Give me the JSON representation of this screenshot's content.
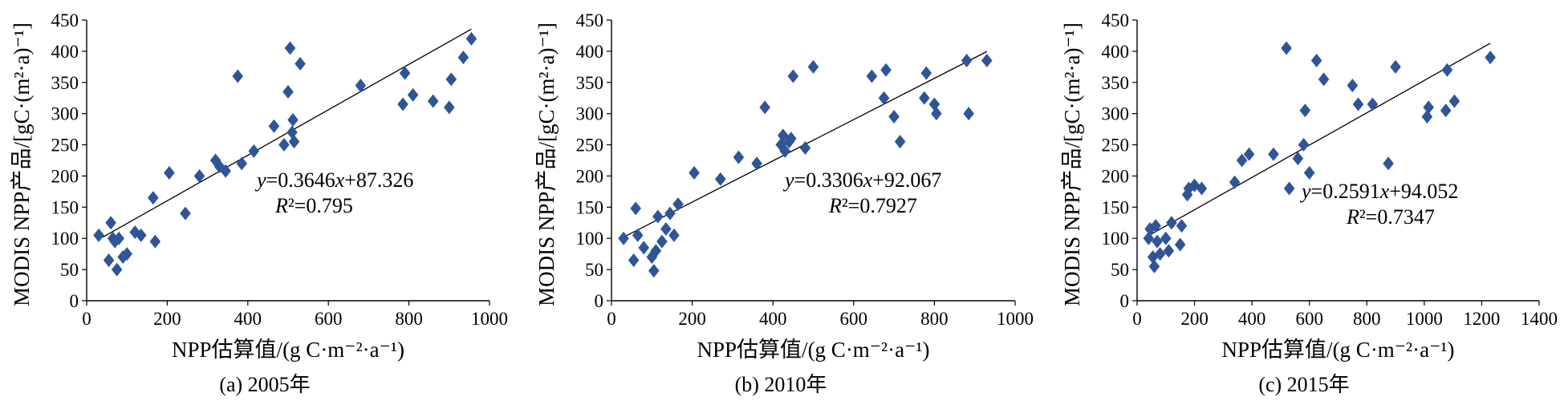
{
  "chart_data": [
    {
      "type": "scatter",
      "panel_label": "(a) 2005年",
      "xlabel": "NPP估算值/(g C·m⁻²·a⁻¹)",
      "ylabel": "MODIS NPP产品/[gC·(m²·a)⁻¹]",
      "xlim": [
        0,
        1000
      ],
      "ylim": [
        0,
        450
      ],
      "xticks": [
        0,
        200,
        400,
        600,
        800,
        1000
      ],
      "yticks": [
        0,
        50,
        100,
        150,
        200,
        250,
        300,
        350,
        400,
        450
      ],
      "marker": "diamond",
      "marker_color": "#2f5597",
      "grid": false,
      "trendline": {
        "slope": 0.3646,
        "intercept": 87.326,
        "x_range": [
          40,
          955
        ]
      },
      "equation_text": "y=0.3646x+87.326",
      "r2_text": "R²=0.795",
      "points": [
        [
          30,
          105
        ],
        [
          55,
          65
        ],
        [
          60,
          125
        ],
        [
          65,
          100
        ],
        [
          70,
          95
        ],
        [
          75,
          50
        ],
        [
          80,
          100
        ],
        [
          90,
          70
        ],
        [
          100,
          75
        ],
        [
          120,
          110
        ],
        [
          135,
          105
        ],
        [
          165,
          165
        ],
        [
          170,
          95
        ],
        [
          205,
          205
        ],
        [
          245,
          140
        ],
        [
          280,
          200
        ],
        [
          320,
          225
        ],
        [
          330,
          215
        ],
        [
          345,
          208
        ],
        [
          375,
          360
        ],
        [
          385,
          220
        ],
        [
          415,
          240
        ],
        [
          465,
          280
        ],
        [
          490,
          250
        ],
        [
          500,
          335
        ],
        [
          505,
          405
        ],
        [
          510,
          270
        ],
        [
          512,
          290
        ],
        [
          515,
          255
        ],
        [
          530,
          380
        ],
        [
          680,
          345
        ],
        [
          785,
          315
        ],
        [
          790,
          365
        ],
        [
          810,
          330
        ],
        [
          860,
          320
        ],
        [
          900,
          310
        ],
        [
          905,
          355
        ],
        [
          935,
          390
        ],
        [
          955,
          420
        ]
      ]
    },
    {
      "type": "scatter",
      "panel_label": "(b) 2010年",
      "xlabel": "NPP估算值/(g C·m⁻²·a⁻¹)",
      "ylabel": "MODIS NPP产品/[gC·(m²·a)⁻¹]",
      "xlim": [
        0,
        1000
      ],
      "ylim": [
        0,
        450
      ],
      "xticks": [
        0,
        200,
        400,
        600,
        800,
        1000
      ],
      "yticks": [
        0,
        50,
        100,
        150,
        200,
        250,
        300,
        350,
        400,
        450
      ],
      "marker": "diamond",
      "marker_color": "#2f5597",
      "grid": false,
      "trendline": {
        "slope": 0.3306,
        "intercept": 92.067,
        "x_range": [
          30,
          930
        ]
      },
      "equation_text": "y=0.3306x+92.067",
      "r2_text": "R²=0.7927",
      "points": [
        [
          30,
          100
        ],
        [
          55,
          65
        ],
        [
          60,
          148
        ],
        [
          65,
          105
        ],
        [
          80,
          85
        ],
        [
          100,
          70
        ],
        [
          105,
          48
        ],
        [
          110,
          80
        ],
        [
          115,
          135
        ],
        [
          125,
          95
        ],
        [
          135,
          115
        ],
        [
          145,
          140
        ],
        [
          155,
          105
        ],
        [
          165,
          155
        ],
        [
          205,
          205
        ],
        [
          270,
          195
        ],
        [
          315,
          230
        ],
        [
          360,
          220
        ],
        [
          380,
          310
        ],
        [
          420,
          250
        ],
        [
          425,
          265
        ],
        [
          430,
          240
        ],
        [
          440,
          255
        ],
        [
          445,
          260
        ],
        [
          450,
          360
        ],
        [
          480,
          245
        ],
        [
          500,
          375
        ],
        [
          645,
          360
        ],
        [
          675,
          325
        ],
        [
          680,
          370
        ],
        [
          700,
          295
        ],
        [
          715,
          255
        ],
        [
          775,
          325
        ],
        [
          780,
          365
        ],
        [
          800,
          315
        ],
        [
          805,
          300
        ],
        [
          880,
          385
        ],
        [
          885,
          300
        ],
        [
          930,
          385
        ]
      ]
    },
    {
      "type": "scatter",
      "panel_label": "(c) 2015年",
      "xlabel": "NPP估算值/(g C·m⁻²·a⁻¹)",
      "ylabel": "MODIS NPP产品/[gC·(m²·a)⁻¹]",
      "xlim": [
        0,
        1400
      ],
      "ylim": [
        0,
        450
      ],
      "xticks": [
        0,
        200,
        400,
        600,
        800,
        1000,
        1200,
        1400
      ],
      "yticks": [
        0,
        50,
        100,
        150,
        200,
        250,
        300,
        350,
        400,
        450
      ],
      "marker": "diamond",
      "marker_color": "#2f5597",
      "grid": false,
      "trendline": {
        "slope": 0.2591,
        "intercept": 94.052,
        "x_range": [
          40,
          1230
        ]
      },
      "equation_text": "y=0.2591x+94.052",
      "r2_text": "R²=0.7347",
      "points": [
        [
          40,
          100
        ],
        [
          45,
          115
        ],
        [
          55,
          70
        ],
        [
          60,
          55
        ],
        [
          65,
          120
        ],
        [
          70,
          95
        ],
        [
          80,
          75
        ],
        [
          100,
          100
        ],
        [
          110,
          80
        ],
        [
          120,
          125
        ],
        [
          150,
          90
        ],
        [
          155,
          120
        ],
        [
          175,
          170
        ],
        [
          180,
          180
        ],
        [
          200,
          185
        ],
        [
          225,
          180
        ],
        [
          340,
          190
        ],
        [
          365,
          225
        ],
        [
          390,
          235
        ],
        [
          475,
          235
        ],
        [
          520,
          405
        ],
        [
          530,
          180
        ],
        [
          560,
          228
        ],
        [
          580,
          250
        ],
        [
          585,
          305
        ],
        [
          600,
          205
        ],
        [
          625,
          385
        ],
        [
          650,
          355
        ],
        [
          750,
          345
        ],
        [
          770,
          315
        ],
        [
          820,
          315
        ],
        [
          875,
          220
        ],
        [
          900,
          375
        ],
        [
          1010,
          295
        ],
        [
          1015,
          310
        ],
        [
          1075,
          305
        ],
        [
          1080,
          370
        ],
        [
          1105,
          320
        ],
        [
          1230,
          390
        ]
      ]
    }
  ]
}
